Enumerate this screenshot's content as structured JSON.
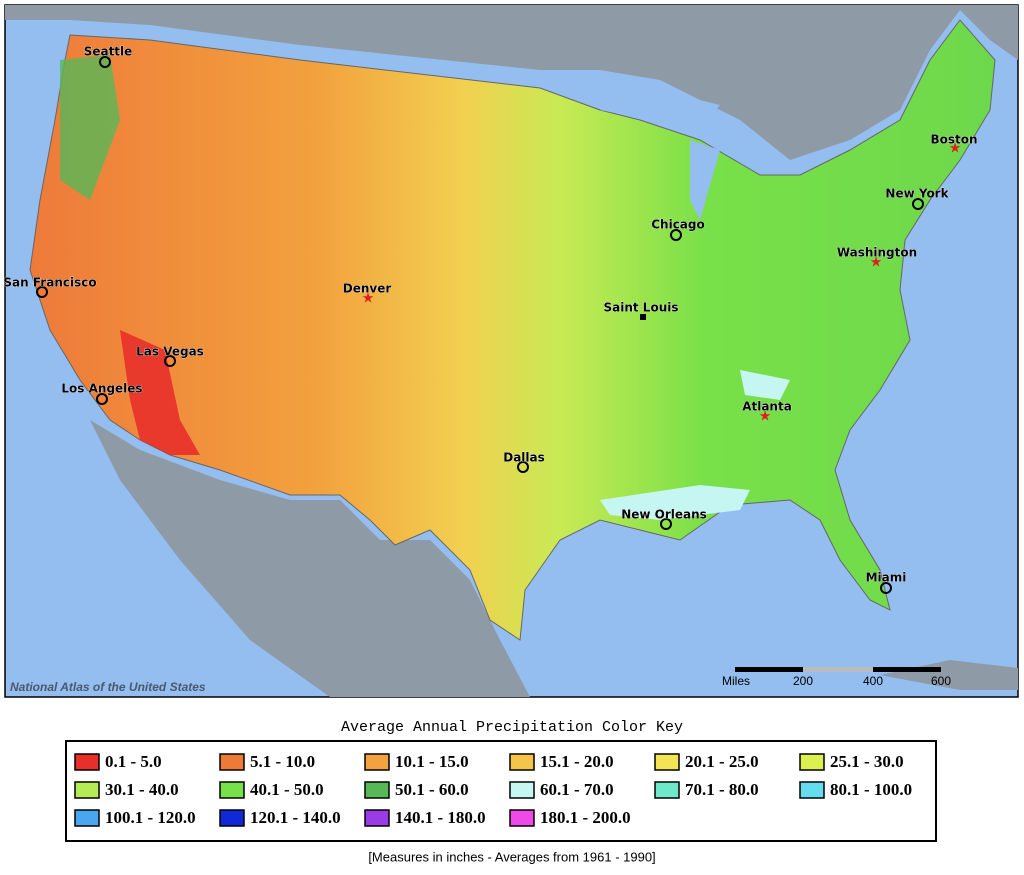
{
  "map": {
    "attribution": "National Atlas of the United States",
    "cities": [
      "Seattle",
      "San Francisco",
      "Las Vegas",
      "Los Angeles",
      "Denver",
      "Dallas",
      "Chicago",
      "Saint Louis",
      "New Orleans",
      "Atlanta",
      "Washington",
      "New York",
      "Boston",
      "Miami"
    ],
    "scale": {
      "unit": "Miles",
      "labels": [
        "200",
        "400",
        "600"
      ]
    }
  },
  "legend": {
    "title": "Average Annual Precipitation Color Key",
    "items": [
      {
        "label": "0.1 - 5.0",
        "color": "#e8302a"
      },
      {
        "label": "5.1 - 10.0",
        "color": "#ee7a3a"
      },
      {
        "label": "10.1 - 15.0",
        "color": "#f2a23e"
      },
      {
        "label": "15.1 - 20.0",
        "color": "#f5c44a"
      },
      {
        "label": "20.1 - 25.0",
        "color": "#f2e454"
      },
      {
        "label": "25.1 - 30.0",
        "color": "#dcf050"
      },
      {
        "label": "30.1 - 40.0",
        "color": "#b4ec56"
      },
      {
        "label": "40.1 - 50.0",
        "color": "#78e048"
      },
      {
        "label": "50.1 - 60.0",
        "color": "#58b858"
      },
      {
        "label": "60.1 - 70.0",
        "color": "#c6f6f2"
      },
      {
        "label": "70.1 - 80.0",
        "color": "#6ee8c8"
      },
      {
        "label": "80.1 - 100.0",
        "color": "#66ddee"
      },
      {
        "label": "100.1 - 120.0",
        "color": "#4aa6ee"
      },
      {
        "label": "120.1 - 140.0",
        "color": "#1028d8"
      },
      {
        "label": "140.1 - 180.0",
        "color": "#9a3ce6"
      },
      {
        "label": "180.1 - 200.0",
        "color": "#ee4ae8"
      }
    ],
    "note": "[Measures in inches - Averages from 1961 - 1990]"
  }
}
